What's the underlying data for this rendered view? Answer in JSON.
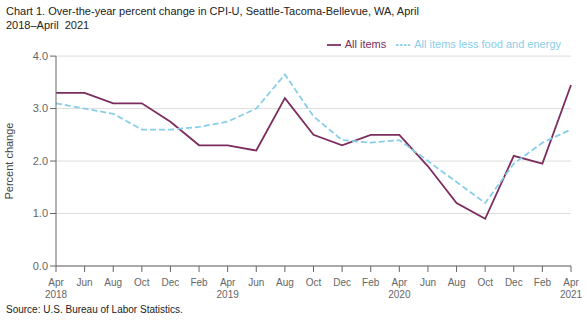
{
  "chart_data": {
    "type": "line",
    "title": "Chart 1. Over-the-year percent change in CPI-U, Seattle-Tacoma-Bellevue, WA, April\n2018–April  2021",
    "ylabel": "Percent change",
    "annotations": [
      "Source: U.S. Bureau of Labor Statistics."
    ],
    "categories": [
      "Apr\n2018",
      "Jun",
      "Aug",
      "Oct",
      "Dec",
      "Feb",
      "Apr\n2019",
      "Jun",
      "Aug",
      "Oct",
      "Dec",
      "Feb",
      "Apr\n2020",
      "Jun",
      "Aug",
      "Oct",
      "Dec",
      "Feb",
      "Apr\n2021"
    ],
    "series": [
      {
        "name": "All items",
        "color": "#7b2d5e",
        "line_style": "solid",
        "values": [
          3.3,
          3.3,
          3.1,
          3.1,
          2.75,
          2.3,
          2.3,
          2.2,
          3.2,
          2.5,
          2.3,
          2.5,
          2.5,
          1.9,
          1.2,
          0.9,
          2.1,
          1.95,
          3.45
        ]
      },
      {
        "name": "All items less food and energy",
        "color": "#87ceeb",
        "line_style": "dashed",
        "values": [
          3.1,
          3.0,
          2.9,
          2.6,
          2.6,
          2.65,
          2.75,
          3.0,
          3.65,
          2.85,
          2.4,
          2.35,
          2.4,
          2.0,
          1.6,
          1.2,
          1.95,
          2.35,
          2.6
        ]
      }
    ],
    "ylim": [
      0.0,
      4.0
    ],
    "yticks": [
      {
        "value": 0,
        "label": "0.0"
      },
      {
        "value": 1,
        "label": "1.0"
      },
      {
        "value": 2,
        "label": "2.0"
      },
      {
        "value": 3,
        "label": "3.0"
      },
      {
        "value": 4,
        "label": "4.0"
      }
    ],
    "grid": "y",
    "legend": "upper right"
  }
}
